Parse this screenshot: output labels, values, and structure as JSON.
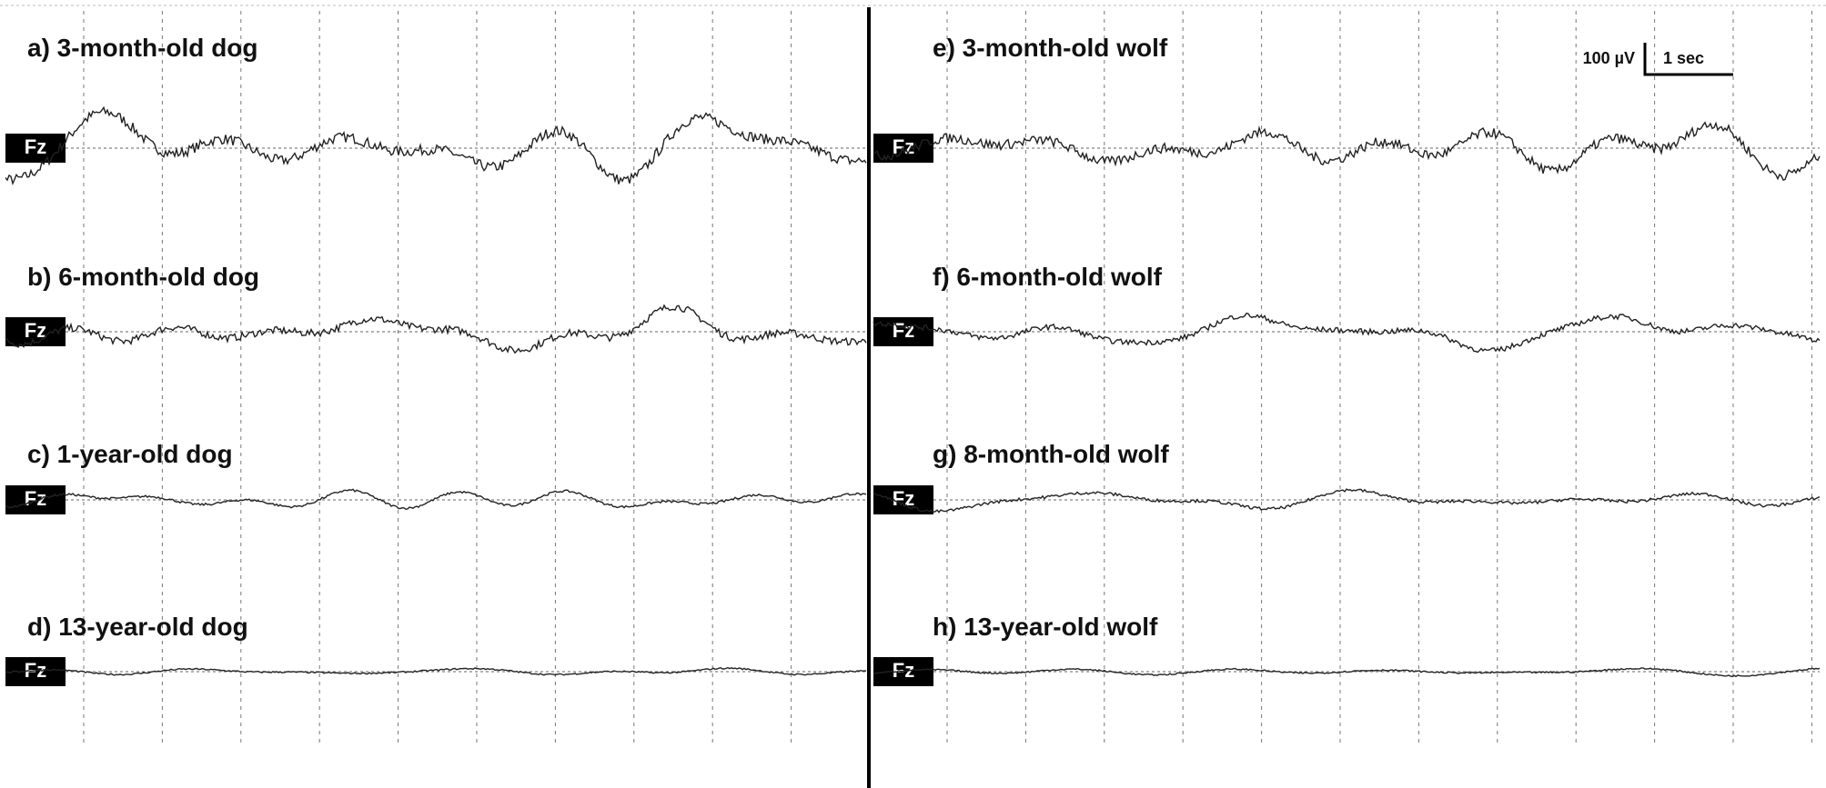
{
  "scale_bar": {
    "amplitude": "100 µV",
    "time": "1 sec"
  },
  "panels": [
    {
      "title": "a) 3-month-old dog",
      "channel": "Fz"
    },
    {
      "title": "b) 6-month-old dog",
      "channel": "Fz"
    },
    {
      "title": "c) 1-year-old dog",
      "channel": "Fz"
    },
    {
      "title": "d) 13-year-old dog",
      "channel": "Fz"
    },
    {
      "title": "e) 3-month-old wolf",
      "channel": "Fz"
    },
    {
      "title": "f) 6-month-old wolf",
      "channel": "Fz"
    },
    {
      "title": "g) 8-month-old wolf",
      "channel": "Fz"
    },
    {
      "title": "h) 13-year-old wolf",
      "channel": "Fz"
    }
  ]
}
